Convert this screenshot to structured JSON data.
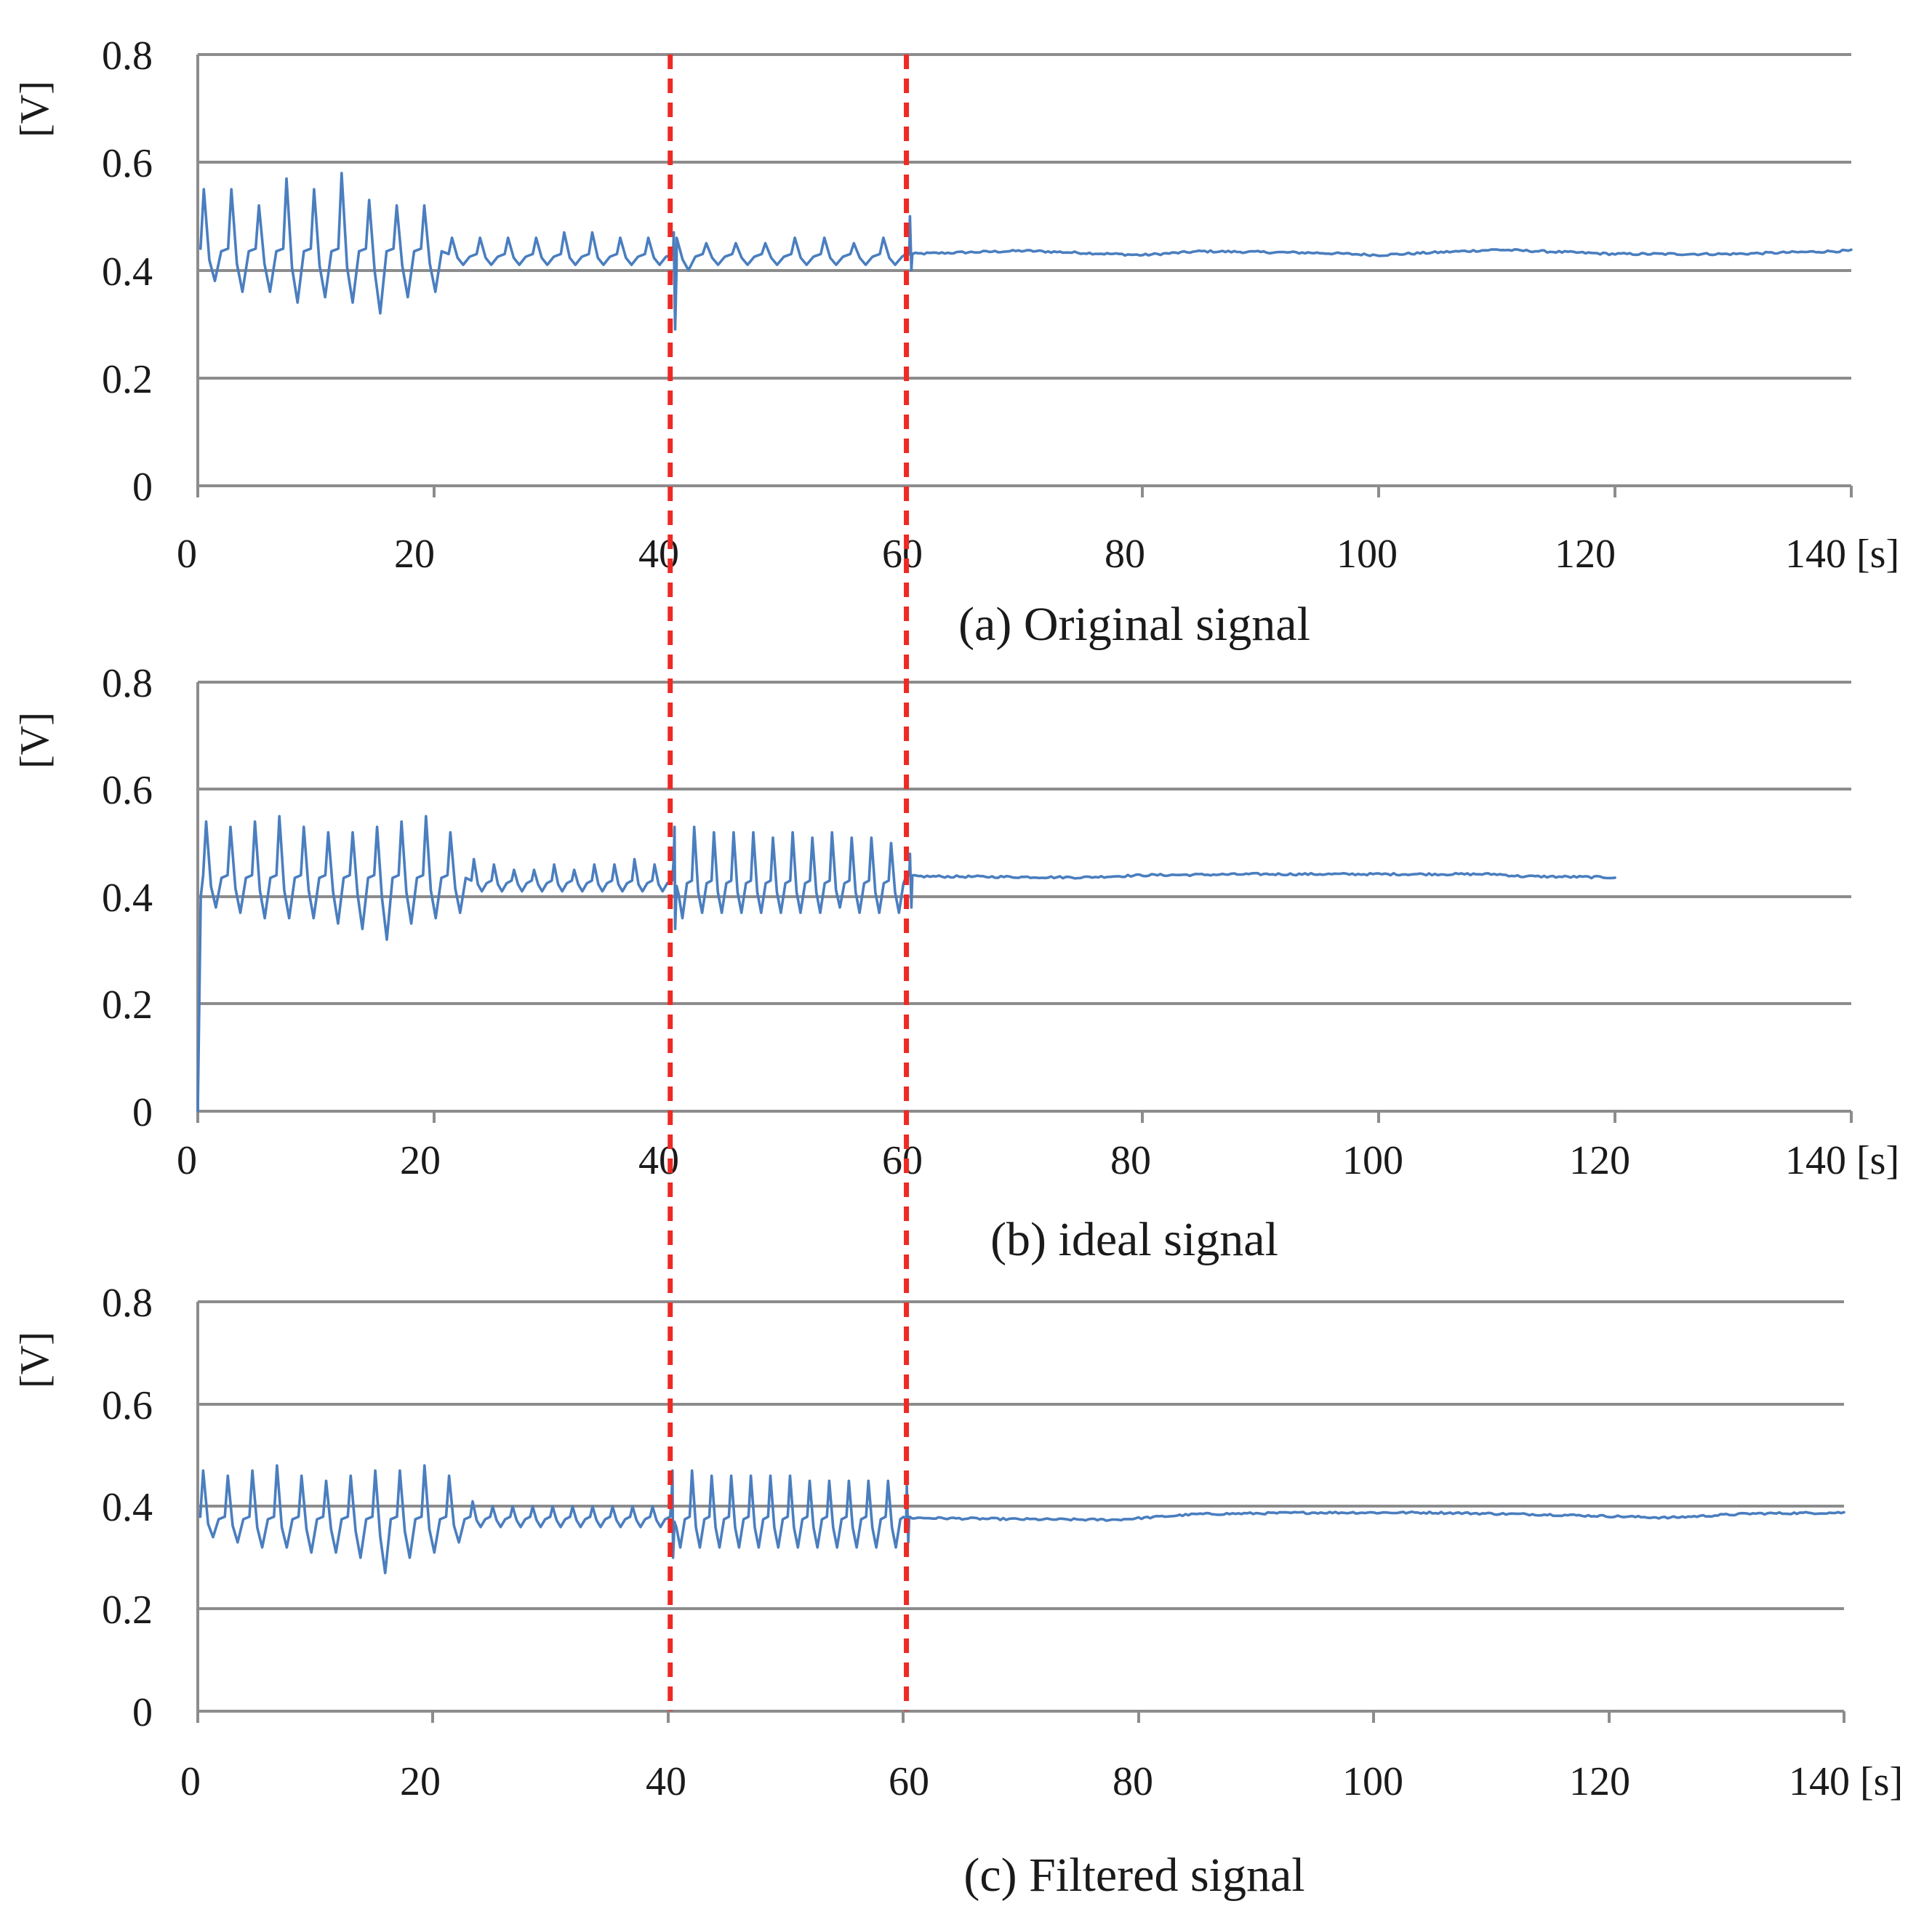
{
  "colors": {
    "series": "#4a7ebf",
    "marker": "#ee2a24",
    "grid": "#8c8c8c"
  },
  "chart_data": [
    {
      "type": "line",
      "caption": "(a) Original signal",
      "ylabel": "[V]",
      "xunit": "[s]",
      "xlim": [
        0,
        140
      ],
      "ylim": [
        0,
        0.8
      ],
      "xticks": [
        "0",
        "20",
        "40",
        "60",
        "80",
        "100",
        "120",
        "140"
      ],
      "yticks": [
        "0",
        "0.2",
        "0.4",
        "0.6",
        "0.8"
      ],
      "grid": true,
      "vlines": [
        40,
        60
      ],
      "series": [
        {
          "name": "Original signal",
          "segments": [
            {
              "x0": 0,
              "x1": 21,
              "kind": "osc",
              "period": 2.6,
              "base": 0.44,
              "peaks": [
                0.55,
                0.55,
                0.52,
                0.57,
                0.55,
                0.58,
                0.53,
                0.52,
                0.52
              ],
              "troughs": [
                0.38,
                0.36,
                0.36,
                0.34,
                0.35,
                0.34,
                0.32,
                0.35,
                0.36
              ]
            },
            {
              "x0": 21,
              "x1": 40,
              "kind": "osc",
              "period": 1.6,
              "base": 0.43,
              "peaks": [
                0.46,
                0.46,
                0.46,
                0.46,
                0.47,
                0.47,
                0.46,
                0.46
              ],
              "troughs": [
                0.41,
                0.41,
                0.41,
                0.41,
                0.41,
                0.41,
                0.41,
                0.41
              ]
            },
            {
              "x0": 40,
              "x1": 60,
              "kind": "osc",
              "period": 2.5,
              "base": 0.43,
              "peaks": [
                0.46,
                0.45,
                0.45,
                0.45,
                0.46,
                0.46,
                0.45,
                0.46
              ],
              "troughs": [
                0.4,
                0.41,
                0.41,
                0.41,
                0.41,
                0.41,
                0.41,
                0.41
              ]
            },
            {
              "x0": 60,
              "x1": 140,
              "kind": "flat",
              "base": 0.432,
              "profile": [
                [
                  60,
                  0.43
                ],
                [
                  70,
                  0.436
                ],
                [
                  80,
                  0.428
                ],
                [
                  85,
                  0.435
                ],
                [
                  95,
                  0.432
                ],
                [
                  100,
                  0.428
                ],
                [
                  110,
                  0.438
                ],
                [
                  120,
                  0.43
                ],
                [
                  130,
                  0.43
                ],
                [
                  140,
                  0.436
                ]
              ]
            }
          ],
          "spikes": [
            {
              "x": 40.3,
              "values": [
                0.47,
                0.29,
                0.41
              ]
            },
            {
              "x": 60.3,
              "values": [
                0.5,
                0.4,
                0.43
              ]
            }
          ]
        }
      ]
    },
    {
      "type": "line",
      "caption": "(b) ideal signal",
      "ylabel": "[V]",
      "xunit": "[s]",
      "xlim": [
        0,
        140
      ],
      "ylim": [
        0,
        0.8
      ],
      "xticks": [
        "0",
        "20",
        "40",
        "60",
        "80",
        "100",
        "120",
        "140"
      ],
      "yticks": [
        "0",
        "0.2",
        "0.4",
        "0.6",
        "0.8"
      ],
      "grid": true,
      "vlines": [
        40,
        60
      ],
      "series": [
        {
          "name": "Ideal signal",
          "segments": [
            {
              "x0": 0,
              "x1": 0.25,
              "kind": "ramp",
              "from": 0.0,
              "to": 0.4
            },
            {
              "x0": 0.25,
              "x1": 23,
              "kind": "osc",
              "period": 2.05,
              "base": 0.44,
              "peaks": [
                0.54,
                0.53,
                0.54,
                0.55,
                0.53,
                0.52,
                0.52,
                0.53,
                0.54,
                0.55,
                0.52
              ],
              "troughs": [
                0.38,
                0.37,
                0.36,
                0.36,
                0.36,
                0.35,
                0.34,
                0.32,
                0.35,
                0.36,
                0.37
              ]
            },
            {
              "x0": 23,
              "x1": 40,
              "kind": "osc",
              "period": 1.7,
              "base": 0.43,
              "peaks": [
                0.47,
                0.46,
                0.45,
                0.45,
                0.46,
                0.45,
                0.46,
                0.46,
                0.47,
                0.46
              ],
              "troughs": [
                0.41,
                0.41,
                0.41,
                0.41,
                0.41,
                0.41,
                0.41,
                0.41,
                0.41,
                0.41
              ]
            },
            {
              "x0": 40,
              "x1": 60,
              "kind": "osc",
              "period": 1.6,
              "base": 0.43,
              "peaks": [
                0.53,
                0.53,
                0.52,
                0.52,
                0.52,
                0.51,
                0.52,
                0.51,
                0.52,
                0.51,
                0.51,
                0.5
              ],
              "troughs": [
                0.36,
                0.37,
                0.37,
                0.37,
                0.37,
                0.37,
                0.37,
                0.37,
                0.38,
                0.37,
                0.37,
                0.37
              ]
            },
            {
              "x0": 60,
              "x1": 120,
              "kind": "flat",
              "base": 0.438,
              "profile": [
                [
                  60,
                  0.438
                ],
                [
                  75,
                  0.436
                ],
                [
                  80,
                  0.44
                ],
                [
                  90,
                  0.442
                ],
                [
                  100,
                  0.442
                ],
                [
                  110,
                  0.442
                ],
                [
                  112,
                  0.438
                ],
                [
                  120,
                  0.436
                ]
              ]
            }
          ],
          "spikes": [
            {
              "x": 40.3,
              "values": [
                0.47,
                0.34,
                0.42
              ]
            },
            {
              "x": 60.3,
              "values": [
                0.48,
                0.38,
                0.44
              ]
            }
          ]
        }
      ]
    },
    {
      "type": "line",
      "caption": "(c) Filtered signal",
      "ylabel": "[V]",
      "xunit": "[s]",
      "xlim": [
        0,
        140
      ],
      "ylim": [
        0,
        0.8
      ],
      "xticks": [
        "0",
        "20",
        "40",
        "60",
        "80",
        "100",
        "120",
        "140"
      ],
      "yticks": [
        "0",
        "0.2",
        "0.4",
        "0.6",
        "0.8"
      ],
      "grid": true,
      "vlines": [
        40,
        60
      ],
      "series": [
        {
          "name": "Filtered signal",
          "segments": [
            {
              "x0": 0,
              "x1": 23,
              "kind": "osc",
              "period": 2.05,
              "base": 0.38,
              "peaks": [
                0.47,
                0.46,
                0.47,
                0.48,
                0.46,
                0.45,
                0.46,
                0.47,
                0.47,
                0.48,
                0.46
              ],
              "troughs": [
                0.34,
                0.33,
                0.32,
                0.32,
                0.31,
                0.31,
                0.3,
                0.27,
                0.3,
                0.31,
                0.33
              ]
            },
            {
              "x0": 23,
              "x1": 40,
              "kind": "osc",
              "period": 1.7,
              "base": 0.38,
              "peaks": [
                0.41,
                0.4,
                0.4,
                0.4,
                0.4,
                0.4,
                0.4,
                0.4,
                0.4,
                0.4
              ],
              "troughs": [
                0.36,
                0.36,
                0.36,
                0.36,
                0.36,
                0.36,
                0.36,
                0.36,
                0.36,
                0.36
              ]
            },
            {
              "x0": 40,
              "x1": 60,
              "kind": "osc",
              "period": 1.6,
              "base": 0.38,
              "peaks": [
                0.47,
                0.47,
                0.46,
                0.46,
                0.46,
                0.46,
                0.46,
                0.45,
                0.45,
                0.45,
                0.45,
                0.45
              ],
              "troughs": [
                0.32,
                0.32,
                0.32,
                0.32,
                0.32,
                0.32,
                0.32,
                0.32,
                0.32,
                0.32,
                0.32,
                0.32
              ]
            },
            {
              "x0": 60,
              "x1": 140,
              "kind": "flat",
              "base": 0.385,
              "profile": [
                [
                  60,
                  0.378
                ],
                [
                  70,
                  0.375
                ],
                [
                  78,
                  0.374
                ],
                [
                  85,
                  0.385
                ],
                [
                  95,
                  0.388
                ],
                [
                  105,
                  0.388
                ],
                [
                  115,
                  0.384
                ],
                [
                  125,
                  0.378
                ],
                [
                  132,
                  0.386
                ],
                [
                  140,
                  0.388
                ]
              ]
            }
          ],
          "spikes": [
            {
              "x": 40.3,
              "values": [
                0.42,
                0.3,
                0.37
              ]
            },
            {
              "x": 60.3,
              "values": [
                0.44,
                0.33,
                0.38
              ]
            }
          ]
        }
      ]
    }
  ]
}
